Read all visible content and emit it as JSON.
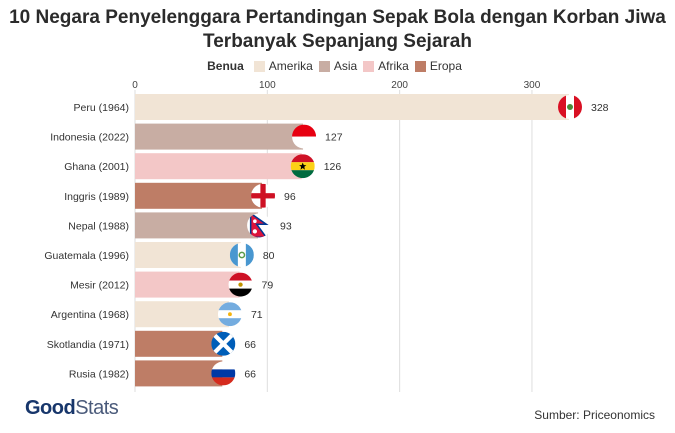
{
  "chart_data": {
    "type": "bar",
    "orientation": "horizontal",
    "title_line1": "10 Negara Penyelenggara Pertandingan Sepak Bola dengan Korban Jiwa",
    "title_line2": "Terbanyak Sepanjang Sejarah",
    "legend_title": "Benua",
    "legend": [
      {
        "name": "Amerika",
        "color": "#f1e4d5"
      },
      {
        "name": "Asia",
        "color": "#c8ada3"
      },
      {
        "name": "Afrika",
        "color": "#f3c7c7"
      },
      {
        "name": "Eropa",
        "color": "#be7d66"
      }
    ],
    "categories": [
      "Peru (1964)",
      "Indonesia (2022)",
      "Ghana (2001)",
      "Inggris (1989)",
      "Nepal (1988)",
      "Guatemala (1996)",
      "Mesir (2012)",
      "Argentina (1968)",
      "Skotlandia (1971)",
      "Rusia (1982)"
    ],
    "values": [
      328,
      127,
      126,
      96,
      93,
      80,
      79,
      71,
      66,
      66
    ],
    "continents": [
      "Amerika",
      "Asia",
      "Afrika",
      "Eropa",
      "Asia",
      "Amerika",
      "Afrika",
      "Amerika",
      "Eropa",
      "Eropa"
    ],
    "flags": [
      "peru-flag",
      "indonesia-flag",
      "ghana-flag",
      "england-flag",
      "nepal-flag",
      "guatemala-flag",
      "egypt-flag",
      "argentina-flag",
      "scotland-flag",
      "russia-flag"
    ],
    "xticks": [
      0,
      100,
      200,
      300
    ],
    "xlim": [
      0,
      340
    ],
    "grid": true,
    "legend_position": "top"
  },
  "footer": {
    "logo_part1": "Good",
    "logo_part2": "Stats",
    "source": "Sumber: Priceonomics"
  }
}
